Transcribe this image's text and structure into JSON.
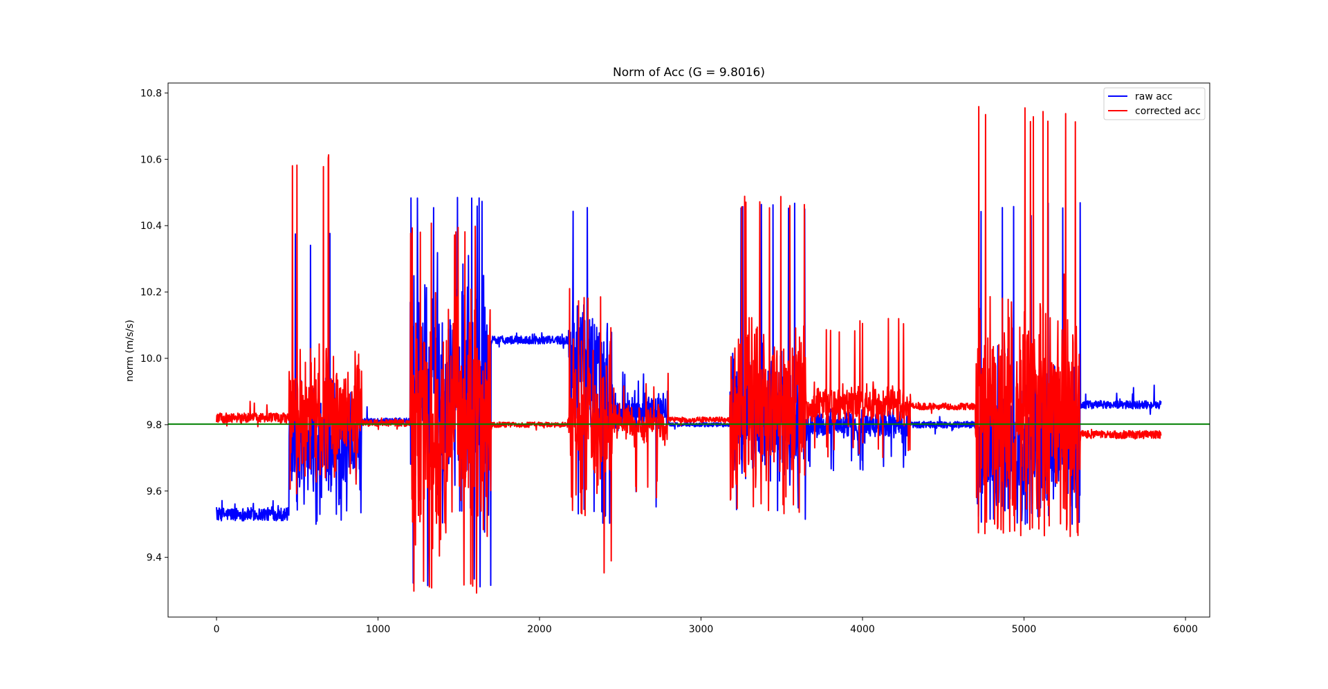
{
  "chart_data": {
    "type": "line",
    "title": "Norm of Acc (G = 9.8016)",
    "xlabel": "",
    "ylabel": "norm (m/s/s)",
    "xlim": [
      -300,
      6150
    ],
    "ylim": [
      9.22,
      10.83
    ],
    "xticks": [
      0,
      1000,
      2000,
      3000,
      4000,
      5000,
      6000
    ],
    "yticks": [
      9.4,
      9.6,
      9.8,
      10.0,
      10.2,
      10.4,
      10.6,
      10.8
    ],
    "ytick_labels": [
      "9.4",
      "9.6",
      "9.8",
      "10.0",
      "10.2",
      "10.4",
      "10.6",
      "10.8"
    ],
    "grid": false,
    "legend_position": "top-right",
    "reference_line": {
      "y": 9.8016,
      "color": "#008000"
    },
    "series": [
      {
        "name": "raw acc",
        "color": "#0000ff",
        "segments": [
          {
            "range": [
              0,
              450
            ],
            "kind": "noise",
            "base": 9.53,
            "amp": 0.02,
            "lo": 9.505,
            "hi": 9.59
          },
          {
            "range": [
              450,
              900
            ],
            "kind": "burst",
            "base": 9.74,
            "amp": 0.16,
            "lo": 9.5,
            "hi": 10.39
          },
          {
            "range": [
              900,
              1200
            ],
            "kind": "noise",
            "base": 9.81,
            "amp": 0.01,
            "lo": 9.79,
            "hi": 9.86
          },
          {
            "range": [
              1200,
              1700
            ],
            "kind": "burst",
            "base": 9.9,
            "amp": 0.32,
            "lo": 9.3,
            "hi": 10.5
          },
          {
            "range": [
              1700,
              2180
            ],
            "kind": "noise",
            "base": 10.055,
            "amp": 0.012,
            "lo": 10.03,
            "hi": 10.08
          },
          {
            "range": [
              2180,
              2450
            ],
            "kind": "burst",
            "base": 9.98,
            "amp": 0.2,
            "lo": 9.5,
            "hi": 10.47
          },
          {
            "range": [
              2450,
              2800
            ],
            "kind": "burst",
            "base": 9.84,
            "amp": 0.05,
            "lo": 9.55,
            "hi": 9.96
          },
          {
            "range": [
              2800,
              3180
            ],
            "kind": "noise",
            "base": 9.8,
            "amp": 0.006,
            "lo": 9.78,
            "hi": 9.82
          },
          {
            "range": [
              3180,
              3650
            ],
            "kind": "burst",
            "base": 9.82,
            "amp": 0.17,
            "lo": 9.5,
            "hi": 10.47
          },
          {
            "range": [
              3650,
              4300
            ],
            "kind": "burst",
            "base": 9.8,
            "amp": 0.04,
            "lo": 9.66,
            "hi": 9.86
          },
          {
            "range": [
              4300,
              4700
            ],
            "kind": "noise",
            "base": 9.8,
            "amp": 0.01,
            "lo": 9.77,
            "hi": 9.83
          },
          {
            "range": [
              4700,
              5350
            ],
            "kind": "burst",
            "base": 9.75,
            "amp": 0.22,
            "lo": 9.5,
            "hi": 10.47
          },
          {
            "range": [
              5350,
              5850
            ],
            "kind": "noise",
            "base": 9.86,
            "amp": 0.012,
            "lo": 9.83,
            "hi": 9.92
          }
        ]
      },
      {
        "name": "corrected acc",
        "color": "#ff0000",
        "segments": [
          {
            "range": [
              0,
              450
            ],
            "kind": "noise",
            "base": 9.82,
            "amp": 0.015,
            "lo": 9.79,
            "hi": 9.88
          },
          {
            "range": [
              450,
              900
            ],
            "kind": "burst",
            "base": 9.83,
            "amp": 0.17,
            "lo": 9.59,
            "hi": 10.62
          },
          {
            "range": [
              900,
              1200
            ],
            "kind": "noise",
            "base": 9.805,
            "amp": 0.01,
            "lo": 9.78,
            "hi": 9.84
          },
          {
            "range": [
              1200,
              1700
            ],
            "kind": "burst",
            "base": 9.8,
            "amp": 0.34,
            "lo": 9.29,
            "hi": 10.41
          },
          {
            "range": [
              1700,
              2180
            ],
            "kind": "noise",
            "base": 9.8,
            "amp": 0.008,
            "lo": 9.78,
            "hi": 9.82
          },
          {
            "range": [
              2180,
              2450
            ],
            "kind": "burst",
            "base": 9.8,
            "amp": 0.22,
            "lo": 9.34,
            "hi": 10.22
          },
          {
            "range": [
              2450,
              2800
            ],
            "kind": "burst",
            "base": 9.8,
            "amp": 0.05,
            "lo": 9.58,
            "hi": 9.96
          },
          {
            "range": [
              2800,
              3180
            ],
            "kind": "noise",
            "base": 9.815,
            "amp": 0.008,
            "lo": 9.79,
            "hi": 9.83
          },
          {
            "range": [
              3180,
              3650
            ],
            "kind": "burst",
            "base": 9.85,
            "amp": 0.22,
            "lo": 9.53,
            "hi": 10.49
          },
          {
            "range": [
              3650,
              4300
            ],
            "kind": "burst",
            "base": 9.86,
            "amp": 0.05,
            "lo": 9.7,
            "hi": 10.12
          },
          {
            "range": [
              4300,
              4700
            ],
            "kind": "noise",
            "base": 9.855,
            "amp": 0.01,
            "lo": 9.83,
            "hi": 9.88
          },
          {
            "range": [
              4700,
              5350
            ],
            "kind": "burst",
            "base": 9.85,
            "amp": 0.3,
            "lo": 9.46,
            "hi": 10.76
          },
          {
            "range": [
              5350,
              5850
            ],
            "kind": "noise",
            "base": 9.77,
            "amp": 0.012,
            "lo": 9.75,
            "hi": 9.79
          }
        ]
      }
    ]
  }
}
